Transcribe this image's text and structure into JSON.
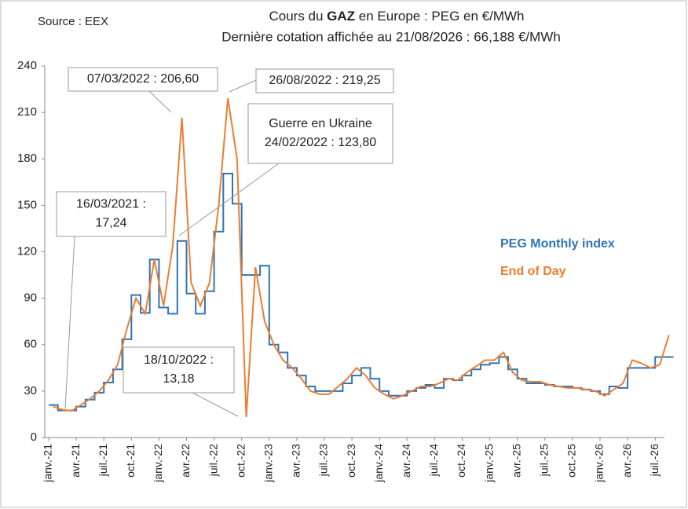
{
  "chart_data": {
    "type": "line",
    "source": "Source : EEX",
    "title_parts": [
      "Cours du ",
      "GAZ",
      " en Europe : PEG en €/MWh"
    ],
    "subtitle": "Dernière cotation affichée au 21/08/2026 : 66,188 €/MWh",
    "categories": [
      "janv.-21",
      null,
      null,
      "avr.-21",
      null,
      null,
      "juil.-21",
      null,
      null,
      "oct.-21",
      null,
      null,
      "janv.-22",
      null,
      null,
      "avr.-22",
      null,
      null,
      "juil.-22",
      null,
      null,
      "oct.-22",
      null,
      null,
      "janv.-23",
      null,
      null,
      "avr.-23",
      null,
      null,
      "juil.-23",
      null,
      null,
      "oct.-23",
      null,
      null,
      "janv.-24",
      null,
      null,
      "avr.-24",
      null,
      null,
      "juil.-24",
      null,
      null,
      "oct.-24",
      null,
      null,
      "janv.-25",
      null,
      null,
      "avr.-25",
      null,
      null,
      "juil.-25",
      null,
      null,
      "oct.-25",
      null,
      null,
      "janv.-26",
      null,
      null,
      "avr.-26",
      null,
      null,
      "juil.-26",
      null
    ],
    "series": [
      {
        "name": "PEG Monthly index",
        "color": "#2e75b6",
        "step": true,
        "values": [
          21,
          17.5,
          17.5,
          20,
          24.5,
          29,
          35.5,
          44,
          63.5,
          92,
          80.5,
          115,
          84,
          80,
          127,
          93,
          80,
          94.5,
          133,
          170.5,
          151,
          105,
          105,
          111,
          60,
          55,
          45,
          40,
          33,
          30,
          30,
          30,
          35,
          40,
          45,
          38,
          30,
          27,
          27,
          30,
          32,
          34,
          32,
          38,
          37,
          40,
          44,
          47,
          48,
          52,
          44,
          38,
          35,
          35,
          34,
          33,
          33,
          32,
          31,
          30,
          28,
          33,
          32,
          45,
          45,
          45,
          52,
          52
        ]
      },
      {
        "name": "End of Day",
        "color": "#ed7d31",
        "step": false,
        "values": [
          20,
          18,
          17.24,
          21,
          25,
          30,
          37,
          47,
          70,
          90,
          80,
          115,
          85,
          123.8,
          206.6,
          100,
          85,
          100,
          150,
          219.25,
          180,
          13.18,
          110,
          75,
          60,
          50,
          45,
          38,
          30,
          28,
          28,
          33,
          38,
          45,
          40,
          32,
          28,
          25,
          27,
          30,
          33,
          33,
          35,
          38,
          37,
          42,
          46,
          50,
          50,
          55,
          42,
          37,
          36,
          36,
          34,
          33,
          32,
          32,
          31,
          30,
          27,
          31,
          35,
          50,
          48,
          45,
          47,
          66.188
        ]
      }
    ],
    "ylim": [
      0,
      240
    ],
    "yticks": [
      0,
      30,
      60,
      90,
      120,
      150,
      180,
      210,
      240
    ],
    "annotations": [
      {
        "lines": [
          "07/03/2022 : 206,60"
        ]
      },
      {
        "lines": [
          "26/08/2022 : 219,25"
        ]
      },
      {
        "lines": [
          "Guerre en Ukraine",
          "24/02/2022 : 123,80"
        ]
      },
      {
        "lines": [
          "16/03/2021 :",
          "17,24"
        ]
      },
      {
        "lines": [
          "18/10/2022 :",
          "13,18"
        ]
      }
    ]
  }
}
